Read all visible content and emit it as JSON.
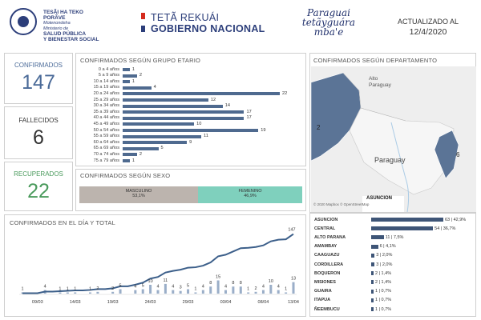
{
  "header": {
    "ministry_line1": "TESÃI HA TEKO",
    "ministry_line2": "PORÃVE",
    "ministry_line3": "Motenondeha",
    "ministry_line4": "Ministerio de",
    "ministry_line5": "SALUD PÚBLICA",
    "ministry_line6": "Y BIENESTAR SOCIAL",
    "gov_line1": "TETÃ REKUÁI",
    "gov_line2": "GOBIERNO NACIONAL",
    "brand_line1": "Paraguai",
    "brand_line2": "tetãyguára",
    "brand_line3": "mba'e",
    "updated_label": "ACTUALIZADO AL",
    "updated_date": "12/4/2020"
  },
  "kpis": {
    "confirmed_label": "CONFIRMADOS",
    "confirmed_value": "147",
    "deaths_label": "FALLECIDOS",
    "deaths_value": "6",
    "recovered_label": "RECUPERADOS",
    "recovered_value": "22"
  },
  "age_panel": {
    "title": "CONFIRMADOS SEGÚN GRUPO ETARIO",
    "groups": [
      {
        "label": "0 a 4 años",
        "value": 1
      },
      {
        "label": "5 a 9 años",
        "value": 2
      },
      {
        "label": "10 a 14 años",
        "value": 1
      },
      {
        "label": "15 a 19 años",
        "value": 4
      },
      {
        "label": "20 a 24 años",
        "value": 22
      },
      {
        "label": "25 a 29 años",
        "value": 12
      },
      {
        "label": "30 a 34 años",
        "value": 14
      },
      {
        "label": "35 a 39 años",
        "value": 17
      },
      {
        "label": "40 a 44 años",
        "value": 17
      },
      {
        "label": "45 a 49 años",
        "value": 10
      },
      {
        "label": "50 a 54 años",
        "value": 19
      },
      {
        "label": "55 a 59 años",
        "value": 11
      },
      {
        "label": "60 a 64 años",
        "value": 9
      },
      {
        "label": "65 a 69 años",
        "value": 5
      },
      {
        "label": "70 a 74 años",
        "value": 2
      },
      {
        "label": "75 a 79 años",
        "value": 1
      }
    ]
  },
  "sex_panel": {
    "title": "CONFIRMADOS SEGÚN SEXO",
    "male_label": "MASCULINO",
    "male_pct": "53,1%",
    "male_share": 0.531,
    "male_color": "#bcb4ae",
    "female_label": "FEMENINO",
    "female_pct": "46,9%",
    "female_color": "#7fd0bd"
  },
  "map_panel": {
    "title": "CONFIRMADOS SEGÚN DEPARTAMENTO",
    "label_alto_paraguay": "Alto\nParaguay",
    "label_paraguay": "Paraguay",
    "label_asuncion": "ASUNCION",
    "count_west": "2",
    "count_east": "6",
    "attribution": "© 2020 Mapbox © OpenStreetMap"
  },
  "dept_panel": {
    "departments": [
      {
        "name": "ASUNCION",
        "value": 63,
        "pct": "42,9%"
      },
      {
        "name": "CENTRAL",
        "value": 54,
        "pct": "36,7%"
      },
      {
        "name": "ALTO PARANA",
        "value": 11,
        "pct": "7,5%"
      },
      {
        "name": "AMAMBAY",
        "value": 6,
        "pct": "4,1%"
      },
      {
        "name": "CAAGUAZU",
        "value": 3,
        "pct": "2,0%"
      },
      {
        "name": "CORDILLERA",
        "value": 3,
        "pct": "2,0%"
      },
      {
        "name": "BOQUERON",
        "value": 2,
        "pct": "1,4%"
      },
      {
        "name": "MISIONES",
        "value": 2,
        "pct": "1,4%"
      },
      {
        "name": "GUAIRA",
        "value": 1,
        "pct": "0,7%"
      },
      {
        "name": "ITAPUA",
        "value": 1,
        "pct": "0,7%"
      },
      {
        "name": "ÑEEMBUCU",
        "value": 1,
        "pct": "0,7%"
      }
    ]
  },
  "timeline_panel": {
    "title": "CONFIRMADOS EN EL DÍA Y TOTAL",
    "end_label": "147"
  },
  "chart_data": {
    "type": "line",
    "title": "CONFIRMADOS EN EL DÍA Y TOTAL",
    "x_ticks": [
      "09/03",
      "14/03",
      "19/03",
      "24/03",
      "29/03",
      "03/04",
      "08/04",
      "13/04"
    ],
    "dates": [
      "07/03",
      "08/03",
      "09/03",
      "10/03",
      "11/03",
      "12/03",
      "13/03",
      "14/03",
      "15/03",
      "16/03",
      "17/03",
      "18/03",
      "19/03",
      "20/03",
      "21/03",
      "22/03",
      "23/03",
      "24/03",
      "25/03",
      "26/03",
      "27/03",
      "28/03",
      "29/03",
      "30/03",
      "31/03",
      "01/04",
      "02/04",
      "03/04",
      "04/04",
      "05/04",
      "06/04",
      "07/04",
      "08/04",
      "09/04",
      "10/04",
      "11/04",
      "12/04"
    ],
    "series": [
      {
        "name": "Total",
        "values": [
          1,
          1,
          1,
          5,
          5,
          6,
          7,
          8,
          8,
          9,
          11,
          11,
          13,
          18,
          18,
          22,
          27,
          37,
          41,
          52,
          56,
          59,
          64,
          65,
          69,
          77,
          92,
          96,
          104,
          112,
          113,
          115,
          119,
          129,
          133,
          134,
          147
        ]
      },
      {
        "name": "En el día",
        "values": [
          1,
          0,
          0,
          4,
          0,
          1,
          1,
          1,
          0,
          1,
          2,
          0,
          2,
          5,
          0,
          4,
          5,
          10,
          4,
          11,
          4,
          3,
          5,
          1,
          4,
          8,
          15,
          4,
          8,
          8,
          1,
          2,
          4,
          10,
          4,
          1,
          13
        ]
      }
    ],
    "ylim": [
      0,
      150
    ]
  }
}
